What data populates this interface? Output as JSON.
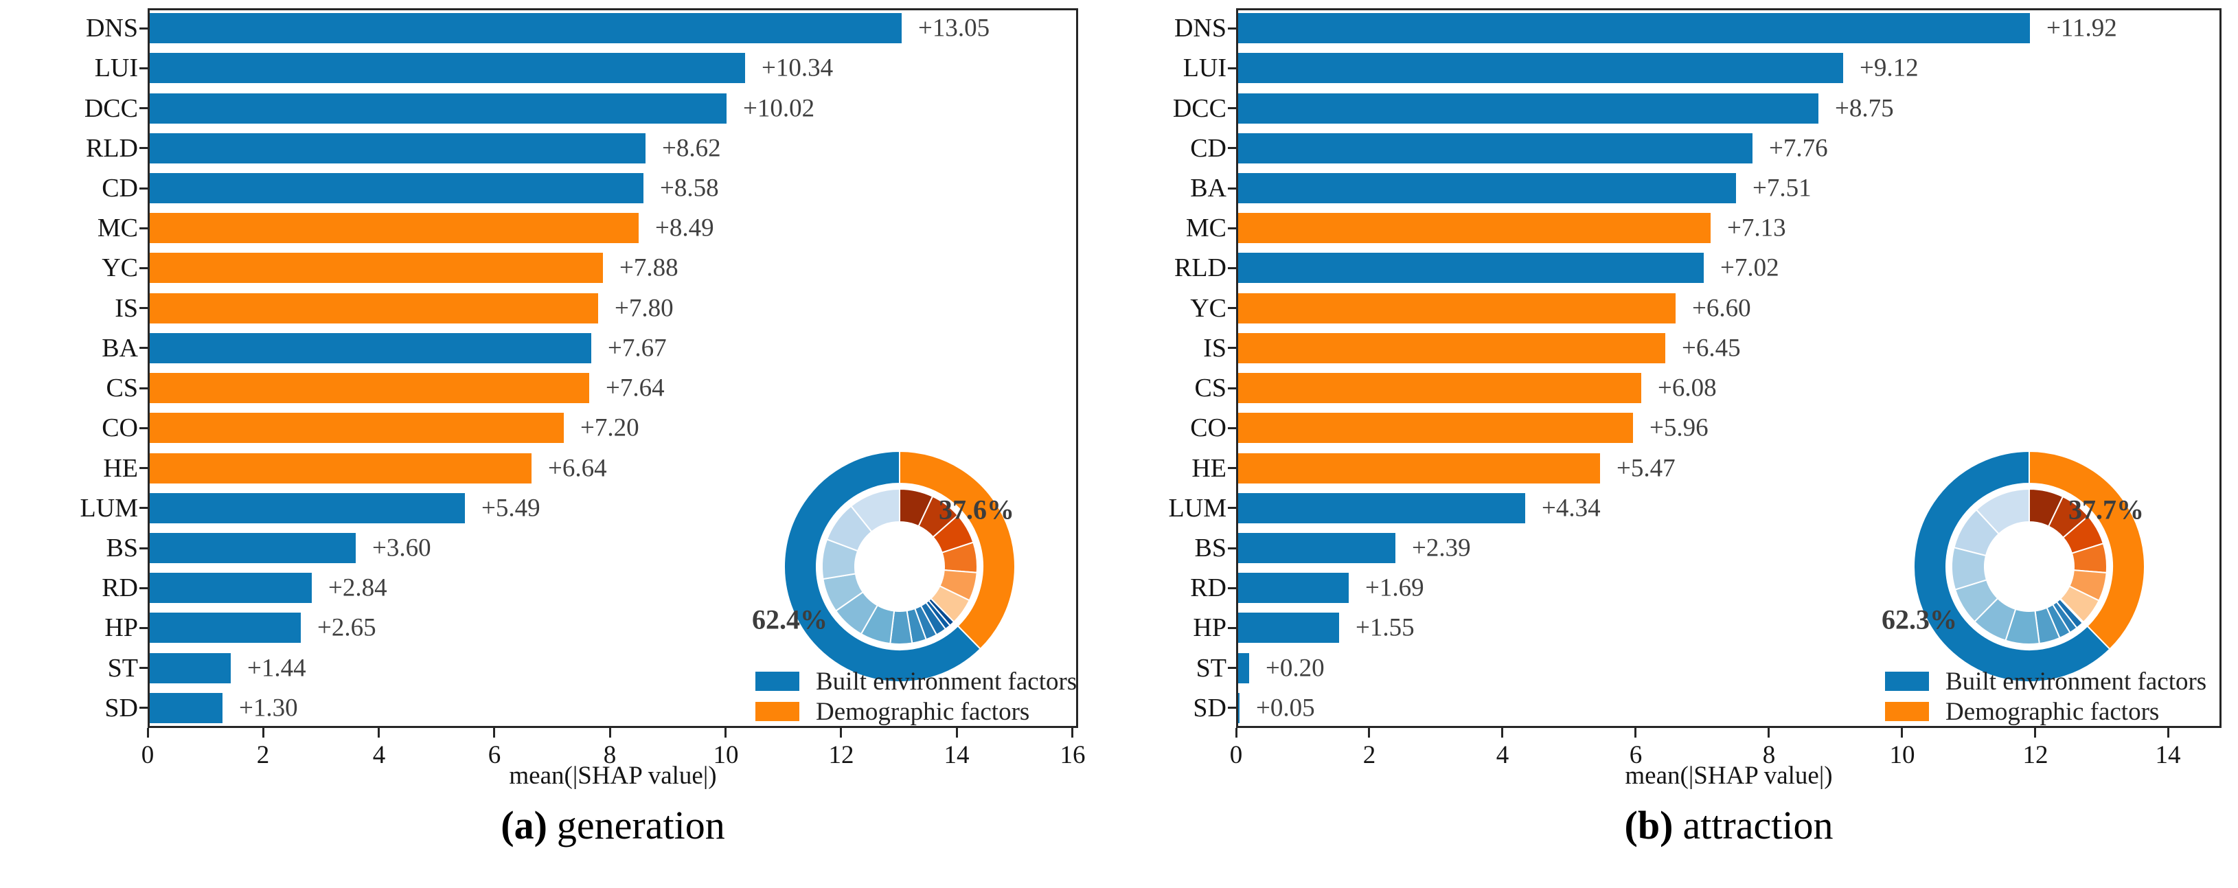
{
  "colors": {
    "built": "#0d78b6",
    "demo": "#fd8408",
    "axis": "#262626",
    "value_label": "#3f3f3f",
    "text": "#141414",
    "inner_blues": [
      "#cde0f1",
      "#bdd7ec",
      "#abcfe6",
      "#9ac7e0",
      "#85bcda",
      "#6eb1d3",
      "#539fc9",
      "#3a8ec0",
      "#2b7fb8",
      "#1a6fae",
      "#0c5da4",
      "#084a90"
    ],
    "inner_oranges": [
      "#9a2c06",
      "#bc3b06",
      "#dc4a03",
      "#f1741f",
      "#fa9d51",
      "#fdc995"
    ]
  },
  "chart_data": [
    {
      "id": "a",
      "type": "bar",
      "orientation": "horizontal",
      "caption_marker": "(a)",
      "caption_text": "generation",
      "xlabel": "mean(|SHAP value|)",
      "xlim": [
        0,
        16.1
      ],
      "xticks": [
        "0",
        "2",
        "4",
        "6",
        "8",
        "10",
        "12",
        "14",
        "16"
      ],
      "categories": [
        "DNS",
        "LUI",
        "DCC",
        "RLD",
        "CD",
        "MC",
        "YC",
        "IS",
        "BA",
        "CS",
        "CO",
        "HE",
        "LUM",
        "BS",
        "RD",
        "HP",
        "ST",
        "SD"
      ],
      "values": [
        13.05,
        10.34,
        10.02,
        8.62,
        8.58,
        8.49,
        7.88,
        7.8,
        7.67,
        7.64,
        7.2,
        6.64,
        5.49,
        3.6,
        2.84,
        2.65,
        1.44,
        1.3
      ],
      "value_labels": [
        "+13.05",
        "+10.34",
        "+10.02",
        "+8.62",
        "+8.58",
        "+8.49",
        "+7.88",
        "+7.80",
        "+7.67",
        "+7.64",
        "+7.20",
        "+6.64",
        "+5.49",
        "+3.60",
        "+2.84",
        "+2.65",
        "+1.44",
        "+1.30"
      ],
      "groups": [
        "built",
        "built",
        "built",
        "built",
        "built",
        "demo",
        "demo",
        "demo",
        "built",
        "demo",
        "demo",
        "demo",
        "built",
        "built",
        "built",
        "built",
        "built",
        "built"
      ],
      "legend": [
        {
          "label": "Built environment factors",
          "group": "built"
        },
        {
          "label": "Demographic factors",
          "group": "demo"
        }
      ],
      "donut": {
        "type": "donut",
        "built_pct_label": "62.4%",
        "demo_pct_label": "37.6%",
        "built_pct": 62.4,
        "demo_pct": 37.6
      }
    },
    {
      "id": "b",
      "type": "bar",
      "orientation": "horizontal",
      "caption_marker": "(b)",
      "caption_text": "attraction",
      "xlabel": "mean(|SHAP value|)",
      "xlim": [
        0,
        14.8
      ],
      "xticks": [
        "0",
        "2",
        "4",
        "6",
        "8",
        "10",
        "12",
        "14"
      ],
      "categories": [
        "DNS",
        "LUI",
        "DCC",
        "CD",
        "BA",
        "MC",
        "RLD",
        "YC",
        "IS",
        "CS",
        "CO",
        "HE",
        "LUM",
        "BS",
        "RD",
        "HP",
        "ST",
        "SD"
      ],
      "values": [
        11.92,
        9.12,
        8.75,
        7.76,
        7.51,
        7.13,
        7.02,
        6.6,
        6.45,
        6.08,
        5.96,
        5.47,
        4.34,
        2.39,
        1.69,
        1.55,
        0.2,
        0.05
      ],
      "value_labels": [
        "+11.92",
        "+9.12",
        "+8.75",
        "+7.76",
        "+7.51",
        "+7.13",
        "+7.02",
        "+6.60",
        "+6.45",
        "+6.08",
        "+5.96",
        "+5.47",
        "+4.34",
        "+2.39",
        "+1.69",
        "+1.55",
        "+0.20",
        "+0.05"
      ],
      "groups": [
        "built",
        "built",
        "built",
        "built",
        "built",
        "demo",
        "built",
        "demo",
        "demo",
        "demo",
        "demo",
        "demo",
        "built",
        "built",
        "built",
        "built",
        "built",
        "built"
      ],
      "legend": [
        {
          "label": "Built environment factors",
          "group": "built"
        },
        {
          "label": "Demographic factors",
          "group": "demo"
        }
      ],
      "donut": {
        "type": "donut",
        "built_pct_label": "62.3%",
        "demo_pct_label": "37.7%",
        "built_pct": 62.3,
        "demo_pct": 37.7
      }
    }
  ]
}
